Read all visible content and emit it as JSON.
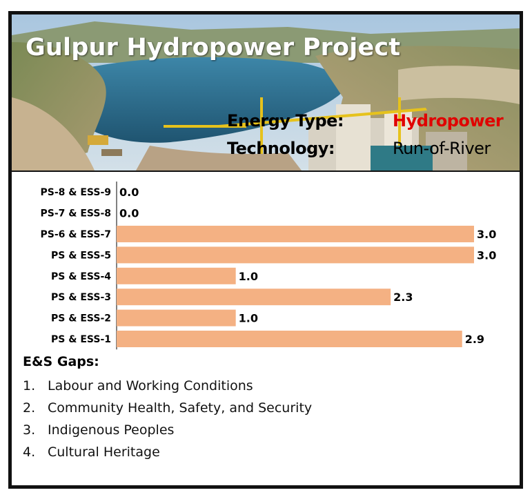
{
  "project": {
    "title": "Gulpur Hydropower Project",
    "energy_type_label": "Energy Type:",
    "energy_type_value": "Hydropower",
    "technology_label": "Technology:",
    "technology_value": "Run-of-River"
  },
  "colors": {
    "bar": "#f4b183",
    "energy_value": "#e00000",
    "frame": "#111111"
  },
  "chart_data": {
    "type": "bar",
    "orientation": "horizontal",
    "categories": [
      "PS-8 & ESS-9",
      "PS-7 & ESS-8",
      "PS-6 & ESS-7",
      "PS & ESS-5",
      "PS & ESS-4",
      "PS & ESS-3",
      "PS & ESS-2",
      "PS & ESS-1"
    ],
    "values": [
      0.0,
      0.0,
      3.0,
      3.0,
      1.0,
      2.3,
      1.0,
      2.9
    ],
    "value_labels": [
      "0.0",
      "0.0",
      "3.0",
      "3.0",
      "1.0",
      "2.3",
      "1.0",
      "2.9"
    ],
    "xlim": [
      0,
      3
    ],
    "grid": false,
    "title": "",
    "xlabel": "",
    "ylabel": ""
  },
  "gaps": {
    "heading": "E&S Gaps:",
    "items": [
      {
        "num": "1.",
        "text": "Labour and Working Conditions"
      },
      {
        "num": "2.",
        "text": "Community Health, Safety, and Security"
      },
      {
        "num": "3.",
        "text": "Indigenous Peoples"
      },
      {
        "num": "4.",
        "text": "Cultural Heritage"
      }
    ]
  }
}
